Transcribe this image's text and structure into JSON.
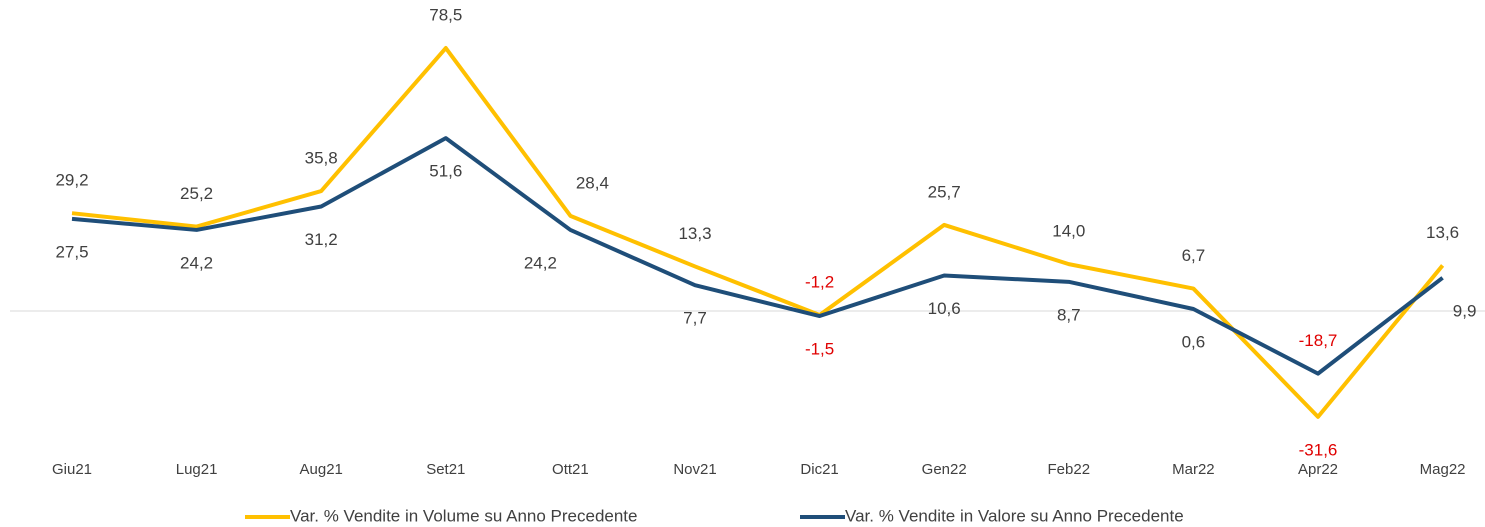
{
  "chart_data": {
    "type": "line",
    "categories": [
      "Giu21",
      "Lug21",
      "Aug21",
      "Set21",
      "Ott21",
      "Nov21",
      "Dic21",
      "Gen22",
      "Feb22",
      "Mar22",
      "Apr22",
      "Mag22"
    ],
    "series": [
      {
        "name": "Var. % Vendite in Volume su Anno Precedente",
        "color": "#ffc000",
        "values": [
          29.2,
          25.2,
          35.8,
          78.5,
          28.4,
          13.3,
          -1.2,
          25.7,
          14.0,
          6.7,
          -31.6,
          13.6
        ],
        "value_labels": [
          "29,2",
          "25,2",
          "35,8",
          "78,5",
          "28,4",
          "13,3",
          "-1,2",
          "25,7",
          "14,0",
          "6,7",
          "-31,6",
          "13,6"
        ]
      },
      {
        "name": "Var. % Vendite in Valore su Anno Precedente",
        "color": "#1f4e79",
        "values": [
          27.5,
          24.2,
          31.2,
          51.6,
          24.2,
          7.7,
          -1.5,
          10.6,
          8.7,
          0.6,
          -18.7,
          9.9
        ],
        "value_labels": [
          "27,5",
          "24,2",
          "31,2",
          "51,6",
          "24,2",
          "7,7",
          "-1,5",
          "10,6",
          "8,7",
          "0,6",
          "-18,7",
          "9,9"
        ]
      }
    ],
    "ylim": [
      -40,
      90
    ],
    "negative_label_color": "#e00000",
    "legend": "bottom"
  }
}
